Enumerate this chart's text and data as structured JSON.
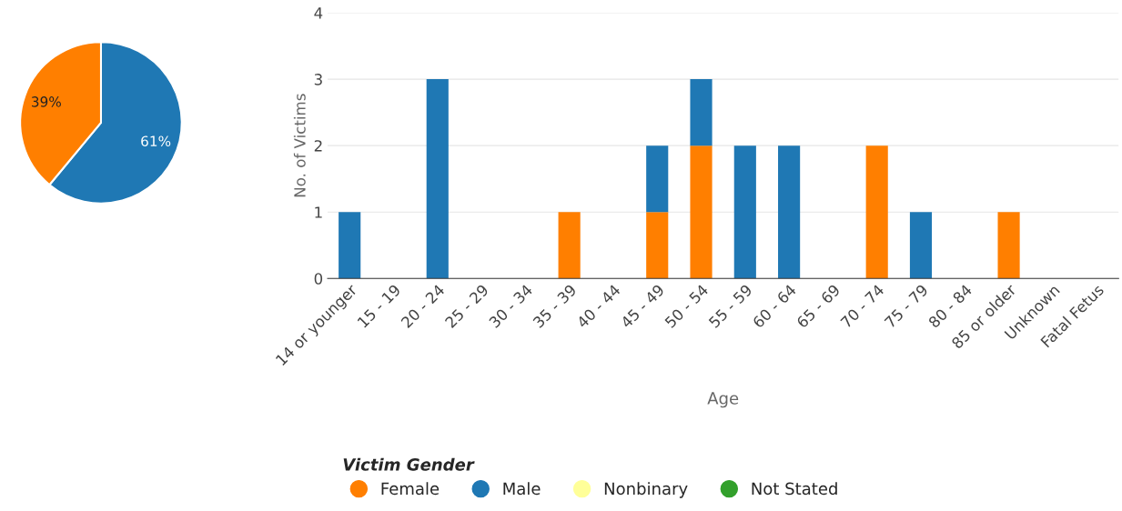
{
  "chart_data": [
    {
      "type": "pie",
      "categories": [
        null,
        null
      ],
      "values": [
        61,
        39
      ],
      "colors": [
        "#1f78b4",
        "#ff7f00"
      ],
      "value_labels": [
        "61%",
        "39%"
      ]
    },
    {
      "type": "bar",
      "stacked": true,
      "xlabel": "Age",
      "ylabel": "No. of Victims",
      "legend_title": "Victim Gender",
      "legend": "bottom",
      "grid": "y",
      "categories": [
        "14 or younger",
        "15 - 19",
        "20 - 24",
        "25 - 29",
        "30 - 34",
        "35 - 39",
        "40 - 44",
        "45 - 49",
        "50 - 54",
        "55 - 59",
        "60 - 64",
        "65 - 69",
        "70 - 74",
        "75 - 79",
        "80 - 84",
        "85 or older",
        "Unknown",
        "Fatal Fetus"
      ],
      "series": [
        {
          "name": "Female",
          "color": "#ff7f00",
          "values": [
            0,
            0,
            0,
            0,
            0,
            1,
            0,
            1,
            2,
            0,
            0,
            0,
            2,
            0,
            0,
            1,
            0,
            0
          ]
        },
        {
          "name": "Male",
          "color": "#1f78b4",
          "values": [
            1,
            0,
            3,
            0,
            0,
            0,
            0,
            1,
            1,
            2,
            2,
            0,
            0,
            1,
            0,
            0,
            0,
            0
          ]
        },
        {
          "name": "Nonbinary",
          "color": "#ffff99",
          "values": [
            0,
            0,
            0,
            0,
            0,
            0,
            0,
            0,
            0,
            0,
            0,
            0,
            0,
            0,
            0,
            0,
            0,
            0
          ]
        },
        {
          "name": "Not Stated",
          "color": "#33a02c",
          "values": [
            0,
            0,
            0,
            0,
            0,
            0,
            0,
            0,
            0,
            0,
            0,
            0,
            0,
            0,
            0,
            0,
            0,
            0
          ]
        }
      ],
      "ylim": [
        0,
        4
      ],
      "yticks": [
        0,
        1,
        2,
        3,
        4
      ]
    }
  ]
}
